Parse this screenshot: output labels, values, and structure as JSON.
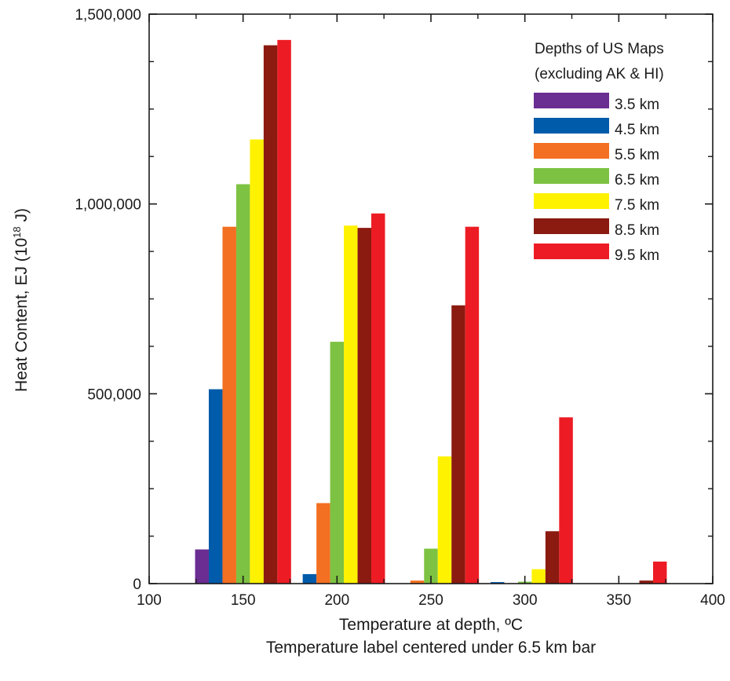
{
  "chart_data": {
    "type": "bar",
    "xlabel": "Temperature at depth, ºC",
    "xlabel_sub": "Temperature label centered under 6.5 km bar",
    "ylabel_main": "Heat Content, EJ (10",
    "ylabel_sup": "18",
    "ylabel_tail": " J)",
    "xlim": [
      100,
      400
    ],
    "ylim": [
      0,
      1500000
    ],
    "x_ticks": [
      "100",
      "150",
      "200",
      "250",
      "300",
      "350",
      "400"
    ],
    "y_ticks": [
      "0",
      "500,000",
      "1,000,000",
      "1,500,000"
    ],
    "x_tick_values": [
      100,
      150,
      200,
      250,
      300,
      350,
      400
    ],
    "y_tick_values": [
      0,
      500000,
      1000000,
      1500000
    ],
    "categories": [
      150,
      200,
      250,
      300,
      350
    ],
    "legend_title": [
      "Depths of US Maps",
      "(excluding AK & HI)"
    ],
    "legend_position": "top-right",
    "series": [
      {
        "name": "3.5 km",
        "color": "#6a2d91",
        "values": [
          90000,
          0,
          0,
          0,
          0
        ]
      },
      {
        "name": "4.5 km",
        "color": "#005bab",
        "values": [
          512000,
          25000,
          0,
          4000,
          0
        ]
      },
      {
        "name": "5.5 km",
        "color": "#f36f21",
        "values": [
          940000,
          212000,
          8000,
          0,
          0
        ]
      },
      {
        "name": "6.5 km",
        "color": "#7dc242",
        "values": [
          1052000,
          637000,
          92000,
          5000,
          0
        ]
      },
      {
        "name": "7.5 km",
        "color": "#fff200",
        "values": [
          1170000,
          943000,
          335000,
          38000,
          0
        ]
      },
      {
        "name": "8.5 km",
        "color": "#8b1a10",
        "values": [
          1418000,
          937000,
          733000,
          138000,
          8000
        ]
      },
      {
        "name": "9.5 km",
        "color": "#ed1c24",
        "values": [
          1432000,
          975000,
          940000,
          438000,
          58000
        ]
      }
    ]
  }
}
